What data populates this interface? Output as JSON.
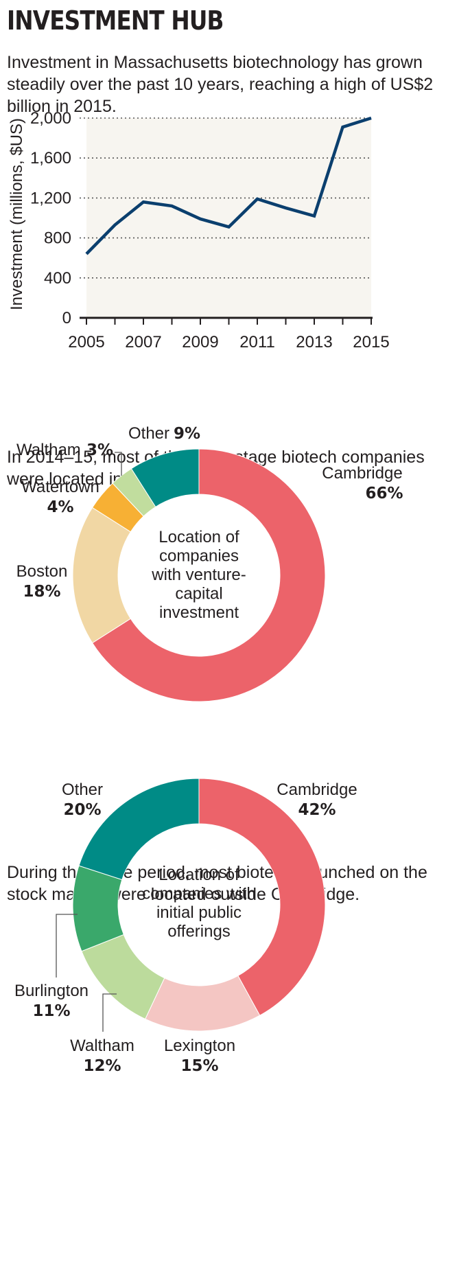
{
  "header": {
    "title": "INVESTMENT HUB"
  },
  "intro_texts": {
    "line": "Investment in Massachusetts biotechnology has grown steadily over the past 10 years, reaching a high of US$2 billion in 2015.",
    "donut1": "In 2014–15, most of the early-stage biotech companies were located in Cambridge.",
    "donut2": "During the same period, most biotechs launched on the stock market were located outside Cambridge."
  },
  "colors": {
    "line": "#0b3f6e",
    "plot_bg": "#f7f5f0",
    "grid": "#555555",
    "axis": "#231f20",
    "cambridge": "#ec636a",
    "boston": "#f1d7a4",
    "watertown": "#f7b034",
    "waltham_vc": "#c1dd9e",
    "other": "#008b86",
    "burlington": "#3aa86b",
    "waltham_ipo": "#bcdb9c",
    "lexington": "#f4c6c3"
  },
  "chart_data": [
    {
      "type": "line",
      "title": "",
      "xlabel": "",
      "ylabel": "Investment (millions, $US)",
      "x": [
        2005,
        2006,
        2007,
        2008,
        2009,
        2010,
        2011,
        2012,
        2013,
        2014,
        2015
      ],
      "series": [
        {
          "values": [
            640,
            930,
            1160,
            1120,
            990,
            910,
            1190,
            1100,
            1020,
            1910,
            2000
          ]
        }
      ],
      "ylim": [
        0,
        2000
      ],
      "xlim": [
        2005,
        2015
      ],
      "yticks": [
        0,
        400,
        800,
        1200,
        1600,
        2000
      ],
      "ytick_labels": [
        "0",
        "400",
        "800",
        "1,200",
        "1,600",
        "2,000"
      ],
      "xticks": [
        2005,
        2007,
        2009,
        2011,
        2013,
        2015
      ],
      "grid": true
    },
    {
      "type": "pie",
      "center_label": [
        "Location of",
        "companies",
        "with venture-",
        "capital",
        "investment"
      ],
      "segments": [
        {
          "name": "Cambridge",
          "value": 66,
          "label": "66%",
          "color_key": "cambridge"
        },
        {
          "name": "Boston",
          "value": 18,
          "label": "18%",
          "color_key": "boston"
        },
        {
          "name": "Watertown",
          "value": 4,
          "label": "4%",
          "color_key": "watertown"
        },
        {
          "name": "Waltham",
          "value": 3,
          "label": "3%",
          "color_key": "waltham_vc"
        },
        {
          "name": "Other",
          "value": 9,
          "label": "9%",
          "color_key": "other"
        }
      ]
    },
    {
      "type": "pie",
      "center_label": [
        "Location of",
        "companies with",
        "initial public",
        "offerings"
      ],
      "segments": [
        {
          "name": "Cambridge",
          "value": 42,
          "label": "42%",
          "color_key": "cambridge"
        },
        {
          "name": "Lexington",
          "value": 15,
          "label": "15%",
          "color_key": "lexington"
        },
        {
          "name": "Waltham",
          "value": 12,
          "label": "12%",
          "color_key": "waltham_ipo"
        },
        {
          "name": "Burlington",
          "value": 11,
          "label": "11%",
          "color_key": "burlington"
        },
        {
          "name": "Other",
          "value": 20,
          "label": "20%",
          "color_key": "other"
        }
      ]
    }
  ]
}
